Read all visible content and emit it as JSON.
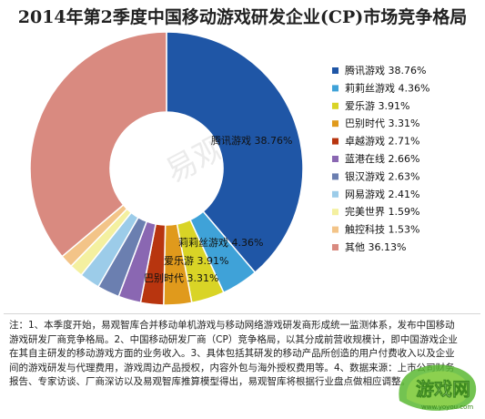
{
  "chart_data": {
    "type": "pie",
    "title": "2014年第2季度中国移动游戏研发企业(CP)市场竞争格局",
    "donut": true,
    "legend_position": "right",
    "slices": [
      {
        "name": "腾讯游戏",
        "value": 38.76,
        "label": "38.76%",
        "color": "#1f56a6"
      },
      {
        "name": "莉莉丝游戏",
        "value": 4.36,
        "label": "4.36%",
        "color": "#3fa2d8"
      },
      {
        "name": "爱乐游",
        "value": 3.91,
        "label": "3.91%",
        "color": "#d9d426"
      },
      {
        "name": "巴别时代",
        "value": 3.31,
        "label": "3.31%",
        "color": "#e09a1c"
      },
      {
        "name": "卓越游戏",
        "value": 2.71,
        "label": "2.71%",
        "color": "#b8350f"
      },
      {
        "name": "蓝港在线",
        "value": 2.66,
        "label": "2.66%",
        "color": "#8a67b2"
      },
      {
        "name": "银汉游戏",
        "value": 2.63,
        "label": "2.63%",
        "color": "#6b7fb0"
      },
      {
        "name": "网易游戏",
        "value": 2.41,
        "label": "2.41%",
        "color": "#9ccce9"
      },
      {
        "name": "完美世界",
        "value": 1.59,
        "label": "1.59%",
        "color": "#f4f0a0"
      },
      {
        "name": "触控科技",
        "value": 1.53,
        "label": "1.53%",
        "color": "#f3c488"
      },
      {
        "name": "其他",
        "value": 36.13,
        "label": "36.13%",
        "color": "#d98a80"
      }
    ],
    "slice_labels": [
      {
        "text": "腾讯游戏 38.76%"
      },
      {
        "text": "莉莉丝游戏 4.36%"
      },
      {
        "text": "爱乐游 3.91%"
      },
      {
        "text": "巴别时代 3.31%"
      }
    ]
  },
  "watermark": "易观智库",
  "note": "注：1、本季度开始，易观智库合并移动单机游戏与移动网络游戏研发商形成统一监测体系，发布中国移动游戏研发厂商竞争格局。2、中国移动研发厂商（CP）竞争格局，以其分成前营收规模计，即中国游戏企业在其自主研发的移动游戏方面的业务收入。3、具体包括其研发的移动产品所创造的用户付费收入以及企业间的游戏研发与代理费用，游戏周边产品授权，内容外包与海外授权费用等。4、数据来源：上市公司财务报告、专家访谈、厂商深访以及易观智库推算模型得出，易观智库将根据行业盘点做相应调整。",
  "logo": {
    "text": "游戏网",
    "url_text": "www.yoyou.com"
  }
}
